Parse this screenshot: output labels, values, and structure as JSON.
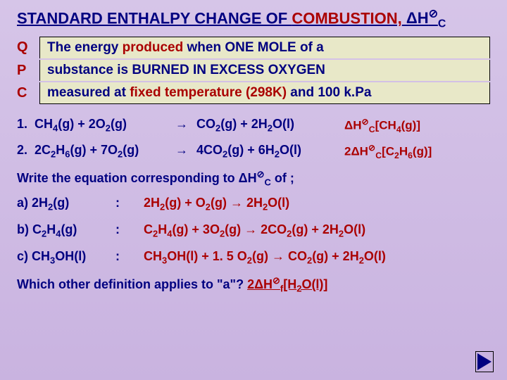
{
  "title": {
    "prefix": "STANDARD ENTHALPY CHANGE OF ",
    "combustion": "COMBUSTION,",
    "notation_html": " ΔH<sup>⊘</sup><sub>C</sub>"
  },
  "definition": {
    "letters": [
      "Q",
      "P",
      "C"
    ],
    "line1_pre": "The  energy ",
    "line1_prod": "produced ",
    "line1_post": "when ONE  MOLE of a",
    "line2": "substance is BURNED IN EXCESS OXYGEN",
    "line3_pre": "measured at ",
    "line3_fixed": "fixed temperature (298K)",
    "line3_post": " and 100 k.Pa"
  },
  "equations": [
    {
      "num": "1.",
      "lhs": "CH<sub>4</sub>(g) + 2O<sub>2</sub>(g)",
      "rhs": "CO<sub>2</sub>(g) + 2H<sub>2</sub>O(l)",
      "label": "ΔH<sup>⊘</sup><sub>C</sub>[CH<sub>4</sub>(g)]"
    },
    {
      "num": "2.",
      "lhs": "2C<sub>2</sub>H<sub>6</sub>(g) + 7O<sub>2</sub>(g)",
      "rhs": "4CO<sub>2</sub>(g) + 6H<sub>2</sub>O(l)",
      "label": "2ΔH<sup>⊘</sup><sub>C</sub>[C<sub>2</sub>H<sub>6</sub>(g)]"
    }
  ],
  "prompt": "Write the equation corresponding to ΔH<sup>⊘</sup><sub>C</sub> of ;",
  "answers": [
    {
      "label": "a) 2H<sub>2</sub>(g)",
      "eq": "2H<sub>2</sub>(g) + O<sub>2</sub>(g) → 2H<sub>2</sub>O(l)"
    },
    {
      "label": "b) C<sub>2</sub>H<sub>4</sub>(g)",
      "eq": "C<sub>2</sub>H<sub>4</sub>(g) + 3O<sub>2</sub>(g)  → 2CO<sub>2</sub>(g) + 2H<sub>2</sub>O(l)"
    },
    {
      "label": "c) CH<sub>3</sub>OH(l)",
      "eq": "CH<sub>3</sub>OH(l) + 1. 5 O<sub>2</sub>(g) → CO<sub>2</sub>(g) + 2H<sub>2</sub>O(l)"
    }
  ],
  "final": {
    "q": "Which other definition applies to \"a\"? ",
    "ans": " 2ΔH<sup>⊘</sup><sub>f</sub>[H<sub>2</sub>O(l)]             "
  },
  "colors": {
    "bg_top": "#d6c5e8",
    "bg_bottom": "#c9b3e0",
    "navy": "#000080",
    "red": "#aa0000",
    "box_bg": "#e8e8c8"
  }
}
